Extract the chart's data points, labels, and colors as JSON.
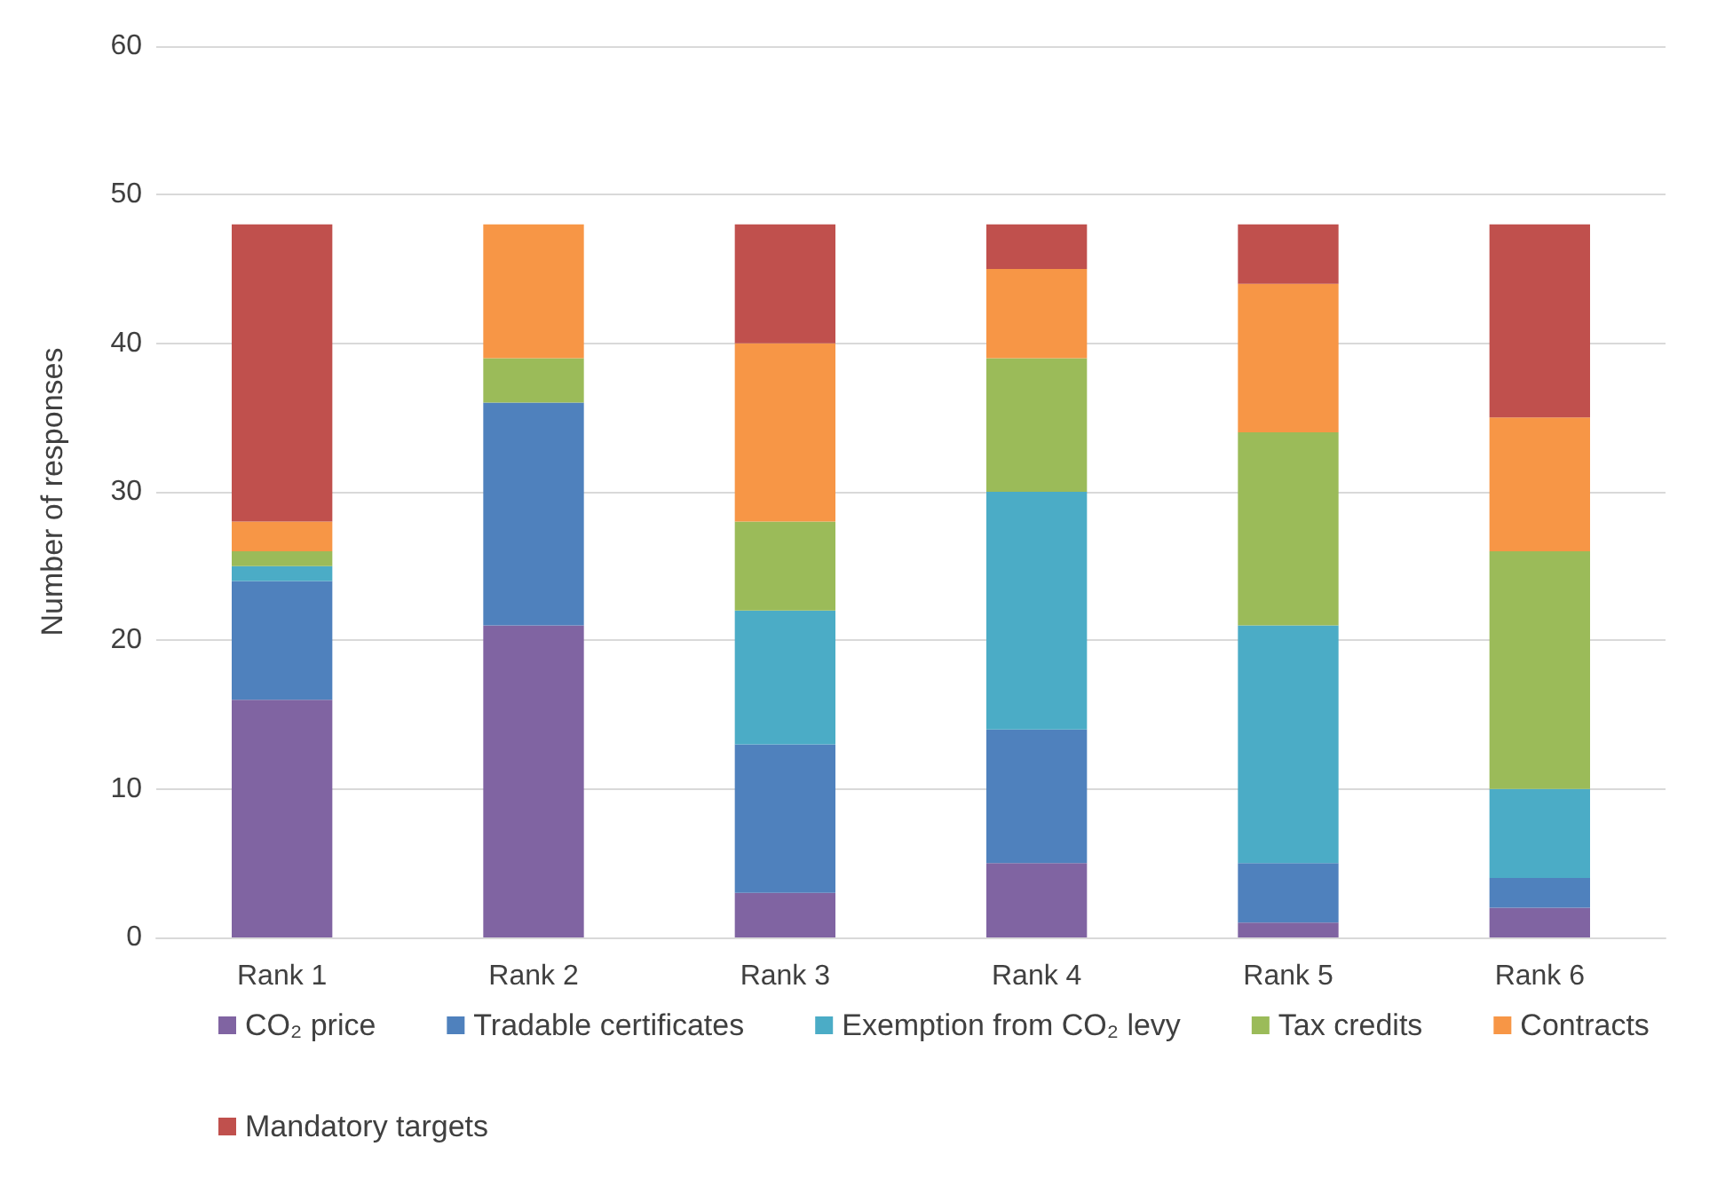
{
  "chart_data": {
    "type": "bar",
    "stacked": true,
    "categories": [
      "Rank 1",
      "Rank 2",
      "Rank 3",
      "Rank 4",
      "Rank 5",
      "Rank 6"
    ],
    "series": [
      {
        "name": "CO₂ price",
        "color": "#8064a2",
        "values": [
          16,
          21,
          3,
          5,
          1,
          2
        ]
      },
      {
        "name": "Tradable certificates",
        "color": "#4f81bd",
        "values": [
          8,
          15,
          10,
          9,
          4,
          2
        ]
      },
      {
        "name": "Exemption from CO₂ levy",
        "color": "#4bacc6",
        "values": [
          1,
          0,
          9,
          16,
          16,
          6
        ]
      },
      {
        "name": "Tax credits",
        "color": "#9bbb59",
        "values": [
          1,
          3,
          6,
          9,
          13,
          16
        ]
      },
      {
        "name": "Contracts",
        "color": "#f79646",
        "values": [
          2,
          9,
          12,
          6,
          10,
          9
        ]
      },
      {
        "name": "Mandatory targets",
        "color": "#c0504d",
        "values": [
          20,
          0,
          8,
          3,
          4,
          13
        ]
      }
    ],
    "ylabel": "Number of responses",
    "ylim": [
      0,
      60
    ],
    "yticks": [
      0,
      10,
      20,
      30,
      40,
      50,
      60
    ],
    "grid": "y",
    "legend": "bottom"
  }
}
